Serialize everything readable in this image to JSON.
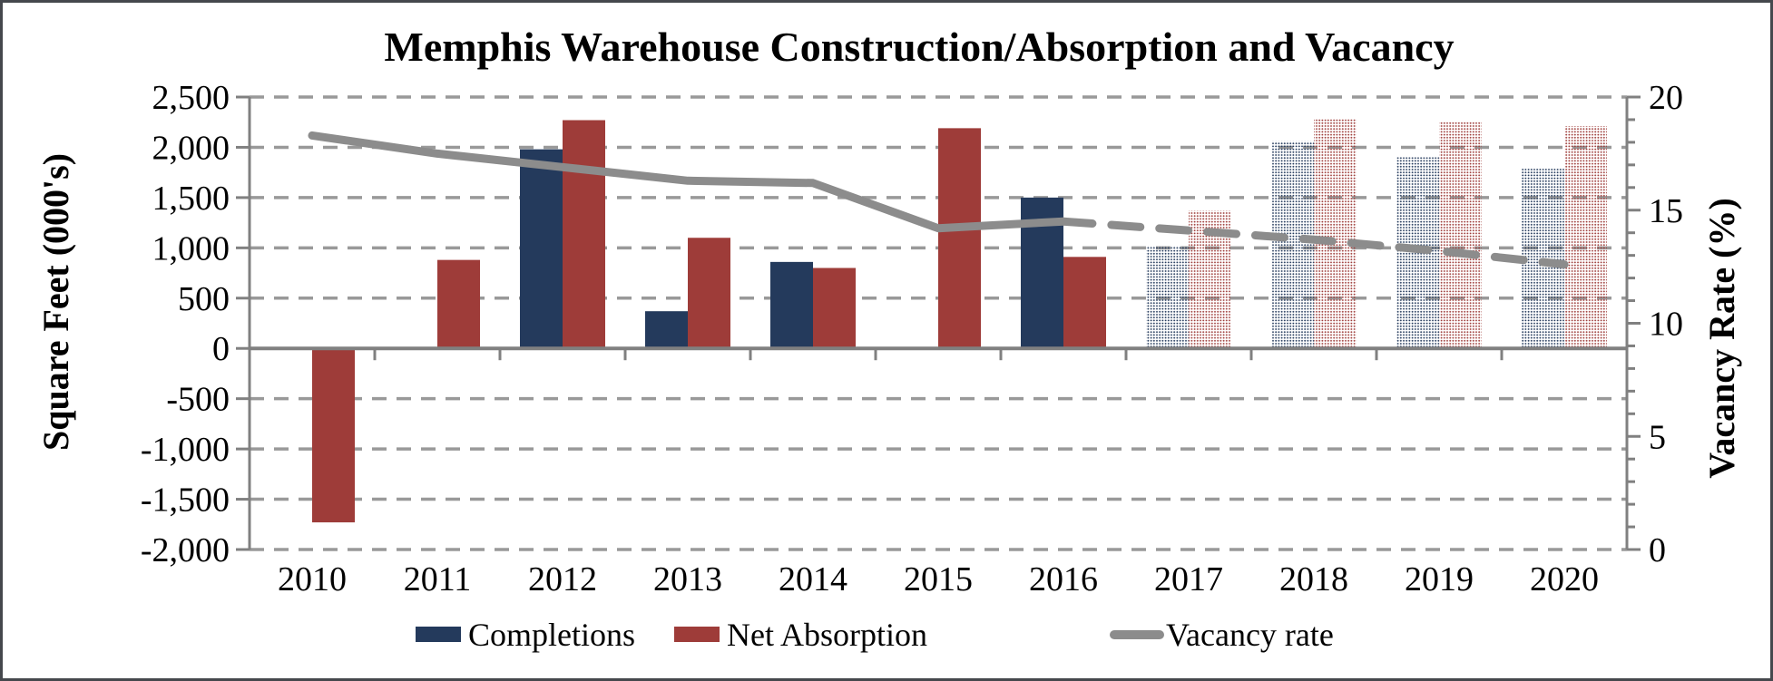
{
  "window": {
    "background": "#ffffff",
    "border_color": "#45484d"
  },
  "chart_data": {
    "type": "combo-bar-line",
    "title": "Memphis Warehouse Construction/Absorption and Vacancy",
    "categories": [
      "2010",
      "2011",
      "2012",
      "2013",
      "2014",
      "2015",
      "2016",
      "2017",
      "2018",
      "2019",
      "2020"
    ],
    "series": [
      {
        "name": "Completions",
        "type": "bar",
        "axis": "left",
        "color": "#243a5c",
        "values": [
          0,
          0,
          1980,
          370,
          860,
          0,
          1500,
          1020,
          2060,
          1900,
          1790
        ]
      },
      {
        "name": "Net Absorption",
        "type": "bar",
        "axis": "left",
        "color": "#9e3c39",
        "values": [
          -1730,
          880,
          2270,
          1100,
          800,
          2190,
          910,
          1370,
          2280,
          2250,
          2210
        ]
      },
      {
        "name": "Vacancy rate",
        "type": "line",
        "axis": "right",
        "color": "#8c8c8c",
        "values": [
          18.3,
          17.5,
          16.9,
          16.3,
          16.2,
          14.2,
          14.5,
          14.1,
          13.7,
          13.2,
          12.6
        ]
      }
    ],
    "forecast_start_index": 7,
    "forecast_style": "dotted bars and dashed line for 2017-2020",
    "ylabel_left": "Square Feet (000's)",
    "ylabel_right": "Vacancy Rate (%)",
    "y_left": {
      "min": -2000,
      "max": 2500,
      "step": 500
    },
    "y_right": {
      "min": 0,
      "max": 20,
      "step": 5,
      "minor_step": 1
    },
    "grid": {
      "horizontal": true,
      "style": "dashed",
      "color": "#999999"
    },
    "axis_color": "#808080",
    "legend_position": "bottom"
  }
}
